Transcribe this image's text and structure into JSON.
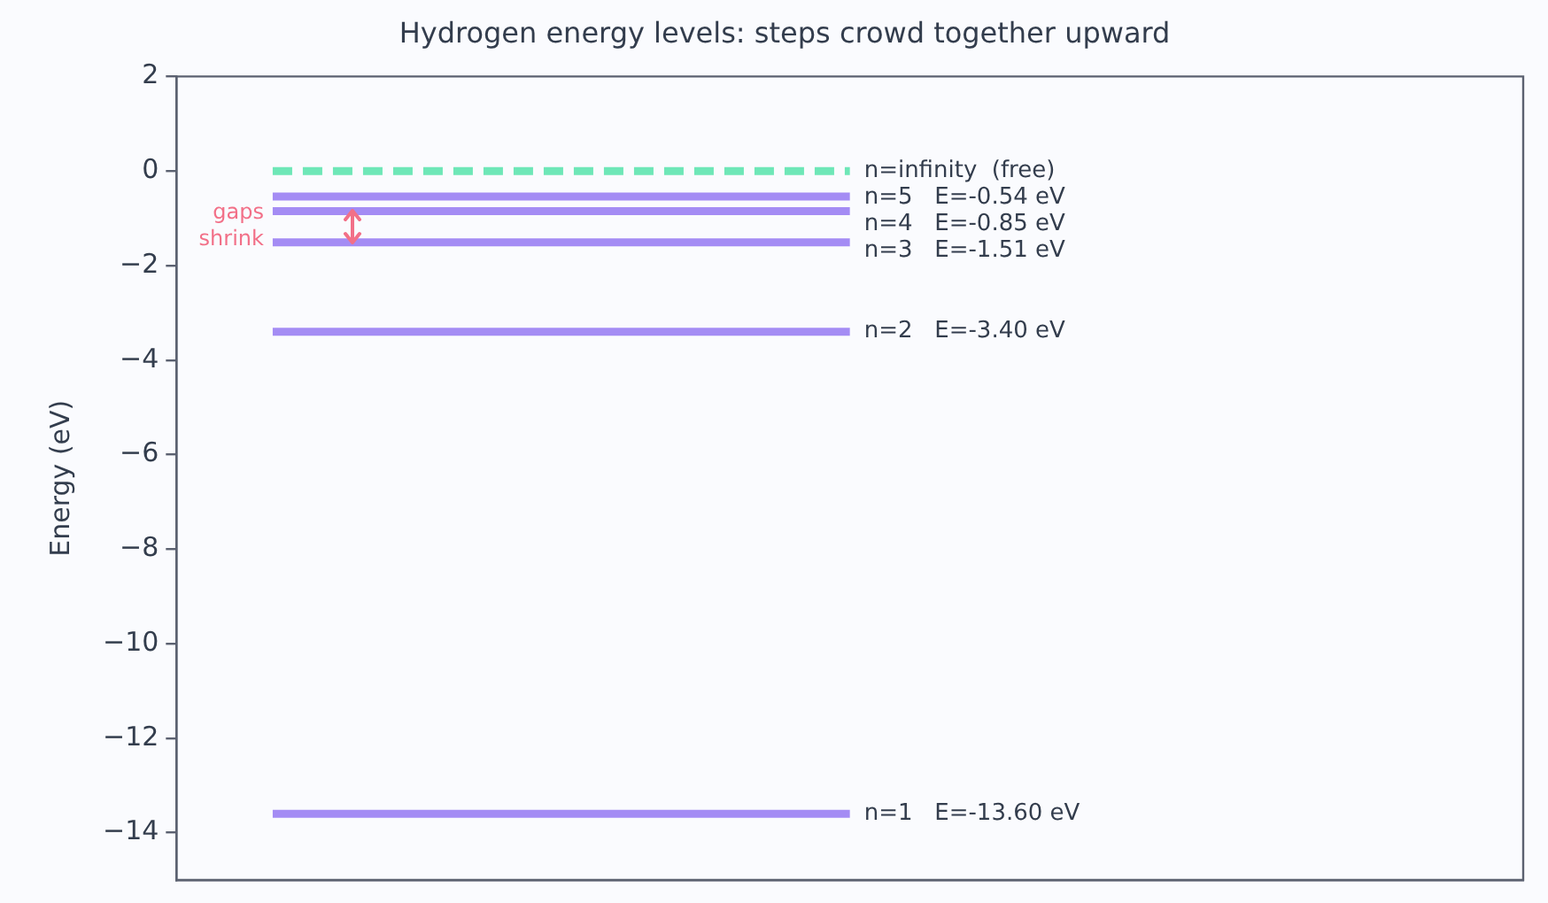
{
  "chart_data": {
    "type": "line",
    "title": "Hydrogen energy levels: steps crowd together upward",
    "ylabel": "Energy (eV)",
    "categories": [
      null,
      null,
      null,
      null,
      null,
      null,
      null
    ],
    "series": [
      {
        "name": "n=1   E=-13.60 eV",
        "color": "#a48cf4",
        "values": [
          -13.6,
          -13.6,
          -13.6,
          -13.6,
          null,
          null,
          null
        ]
      },
      {
        "name": "n=2   E=-3.40 eV",
        "color": "#a48cf4",
        "values": [
          -3.4,
          -3.4,
          -3.4,
          -3.4,
          null,
          null,
          null
        ]
      },
      {
        "name": "n=3   E=-1.51 eV",
        "color": "#a48cf4",
        "values": [
          -1.51,
          -1.51,
          -1.51,
          -1.51,
          null,
          null,
          null
        ]
      },
      {
        "name": "n=4   E=-0.85 eV",
        "color": "#a48cf4",
        "values": [
          -0.85,
          -0.85,
          -0.85,
          -0.85,
          null,
          null,
          null
        ]
      },
      {
        "name": "n=5   E=-0.54 eV",
        "color": "#a48cf4",
        "values": [
          -0.54,
          -0.54,
          -0.54,
          -0.54,
          null,
          null,
          null
        ]
      },
      {
        "name": "n=infinity  (free)",
        "color": "#6ee7b7",
        "line_style": "dashed",
        "values": [
          0,
          0,
          0,
          0,
          null,
          null,
          null
        ]
      }
    ],
    "ylim": [
      -15,
      2
    ],
    "yticks": [
      {
        "value": -14,
        "label": "−14"
      },
      {
        "value": -12,
        "label": "−12"
      },
      {
        "value": -10,
        "label": "−10"
      },
      {
        "value": -8,
        "label": "−8"
      },
      {
        "value": -6,
        "label": "−6"
      },
      {
        "value": -4,
        "label": "−4"
      },
      {
        "value": -2,
        "label": "−2"
      },
      0,
      2
    ],
    "annotations": [
      "gaps shrink"
    ],
    "tick_labels": "y",
    "grid": false,
    "legend": false,
    "marker": "none",
    "line_style": "solid"
  }
}
